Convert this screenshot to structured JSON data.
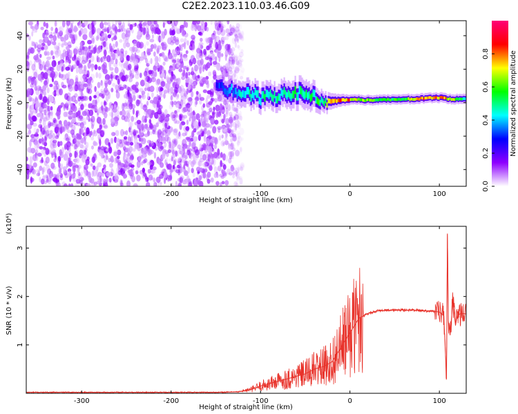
{
  "title": "C2E2.2023.110.03.46.G09",
  "chart_data": [
    {
      "type": "heatmap",
      "xlabel": "Height of straight line (km)",
      "ylabel": "Frequency (Hz)",
      "xlim": [
        -362,
        130
      ],
      "ylim": [
        -50,
        49
      ],
      "xticks": [
        -300,
        -200,
        -100,
        0,
        100
      ],
      "yticks": [
        -40,
        -20,
        0,
        20,
        40
      ],
      "colorbar": {
        "label": "Normalized spectral amplitude",
        "range": [
          0,
          1
        ],
        "ticks": [
          0.0,
          0.2,
          0.4,
          0.6,
          0.8
        ],
        "tick_labels": [
          "0.0",
          "0.2",
          "0.4",
          "0.6",
          "0.8"
        ],
        "colormap": [
          "#ffffff",
          "#8e00ff",
          "#0000ff",
          "#00ffff",
          "#00ff00",
          "#ffff00",
          "#ff0000",
          "#ff0077"
        ]
      },
      "noise_region": {
        "x": [
          -362,
          -120
        ],
        "y": [
          -50,
          49
        ],
        "amplitude": [
          0.03,
          0.15
        ]
      },
      "signal_ridge": [
        {
          "x": -150,
          "center": 9,
          "width": 6,
          "amplitude": 0.28
        },
        {
          "x": -130,
          "center": 7,
          "width": 7,
          "amplitude": 0.38
        },
        {
          "x": -115,
          "center": 6,
          "width": 8,
          "amplitude": 0.45
        },
        {
          "x": -100,
          "center": 3,
          "width": 8,
          "amplitude": 0.48
        },
        {
          "x": -85,
          "center": 4,
          "width": 8,
          "amplitude": 0.47
        },
        {
          "x": -70,
          "center": 5,
          "width": 8,
          "amplitude": 0.48
        },
        {
          "x": -55,
          "center": 6,
          "width": 9,
          "amplitude": 0.5
        },
        {
          "x": -40,
          "center": 3,
          "width": 8,
          "amplitude": 0.5
        },
        {
          "x": -30,
          "center": 1,
          "width": 6,
          "amplitude": 0.55
        },
        {
          "x": -15,
          "center": 1,
          "width": 4,
          "amplitude": 0.8
        },
        {
          "x": 0,
          "center": 2,
          "width": 3,
          "amplitude": 0.75
        },
        {
          "x": 20,
          "center": 1.5,
          "width": 3,
          "amplitude": 0.6
        },
        {
          "x": 60,
          "center": 2,
          "width": 3,
          "amplitude": 0.55
        },
        {
          "x": 80,
          "center": 2.5,
          "width": 3,
          "amplitude": 0.8
        },
        {
          "x": 100,
          "center": 3,
          "width": 3,
          "amplitude": 0.75
        },
        {
          "x": 115,
          "center": 2,
          "width": 3,
          "amplitude": 0.7
        },
        {
          "x": 130,
          "center": 2.5,
          "width": 3,
          "amplitude": 0.45
        }
      ]
    },
    {
      "type": "line",
      "xlabel": "Height of straight line (km)",
      "ylabel": "SNR (10 * v/v)",
      "scale_label": "(x10⁴)",
      "xlim": [
        -362,
        130
      ],
      "ylim": [
        0,
        3.45
      ],
      "xticks": [
        -300,
        -200,
        -100,
        0,
        100
      ],
      "yticks": [
        1,
        2,
        3
      ],
      "line_color": "#e8322a",
      "series": [
        {
          "x": [
            -362,
            -300,
            -200,
            -150,
            -125,
            -110,
            -100,
            -90,
            -80,
            -70,
            -60,
            -50,
            -40,
            -30,
            -20,
            -15,
            -10,
            -5,
            0,
            5,
            10,
            20,
            30,
            50,
            70,
            90,
            100,
            105,
            108,
            109,
            110,
            112,
            115,
            118,
            120,
            125,
            130
          ],
          "y": [
            0.02,
            0.02,
            0.02,
            0.02,
            0.03,
            0.08,
            0.15,
            0.2,
            0.25,
            0.3,
            0.35,
            0.4,
            0.5,
            0.55,
            0.65,
            0.8,
            0.95,
            1.1,
            1.25,
            1.4,
            1.55,
            1.65,
            1.7,
            1.72,
            1.72,
            1.7,
            1.68,
            1.6,
            0.3,
            3.3,
            1.5,
            1.2,
            1.9,
            1.4,
            1.62,
            1.65,
            1.64
          ]
        }
      ]
    }
  ]
}
